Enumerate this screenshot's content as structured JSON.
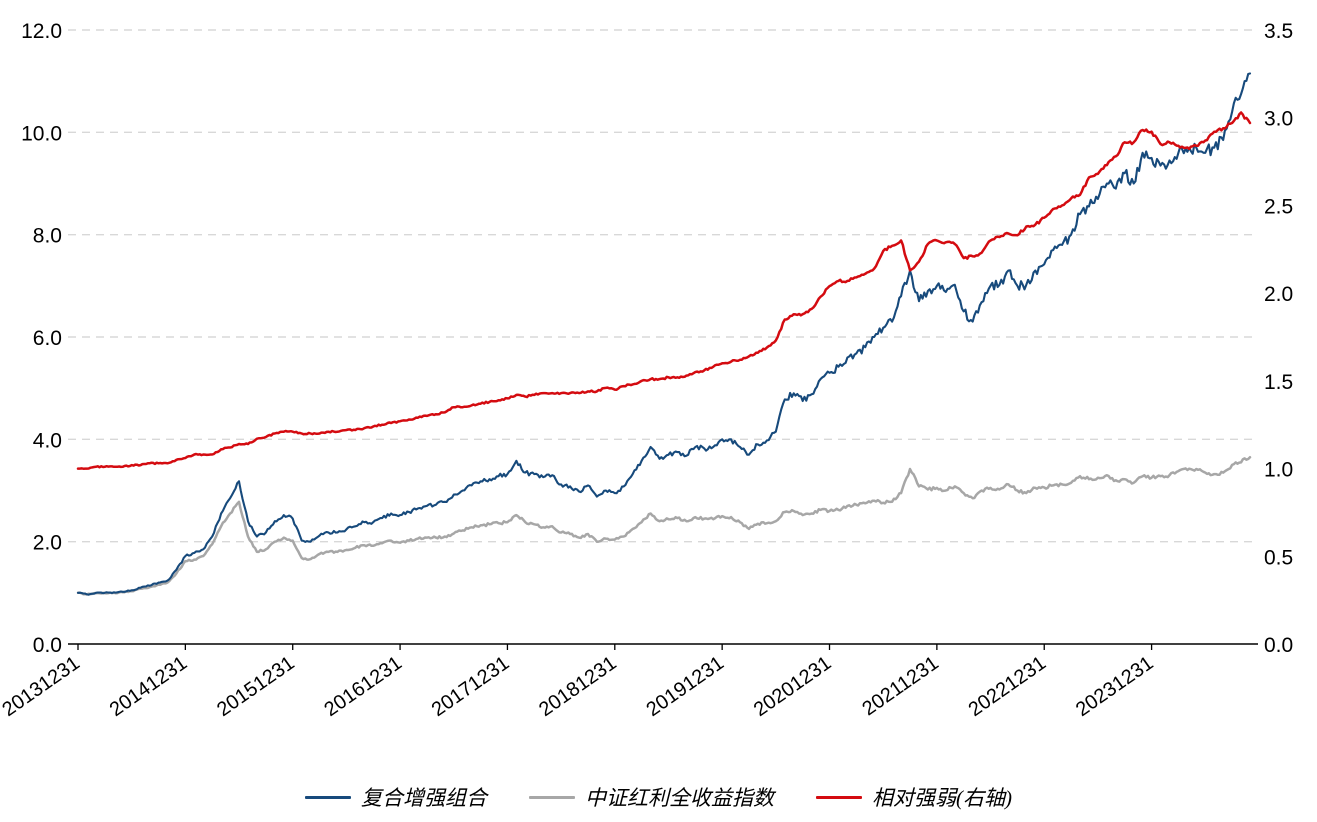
{
  "chart_data": {
    "type": "line",
    "title": "",
    "grid": {
      "show": true,
      "style": "dashed"
    },
    "legend_position": "bottom",
    "x_axis": {
      "start": "2013-12",
      "frequency": "monthly",
      "tick_labels": [
        "20131231",
        "20141231",
        "20151231",
        "20161231",
        "20171231",
        "20181231",
        "20191231",
        "20201231",
        "20211231",
        "20221231",
        "20231231"
      ]
    },
    "left_axis": {
      "range": [
        0,
        12
      ],
      "tick_step": 2,
      "tick_labels": [
        "0.0",
        "2.0",
        "4.0",
        "6.0",
        "8.0",
        "10.0",
        "12.0"
      ]
    },
    "right_axis": {
      "range": [
        0,
        3.5
      ],
      "tick_step": 0.5,
      "tick_labels": [
        "0.0",
        "0.5",
        "1.0",
        "1.5",
        "2.0",
        "2.5",
        "3.0",
        "3.5"
      ]
    },
    "series": [
      {
        "name": "复合增强组合",
        "axis": "left",
        "color": "#174a7c",
        "values": [
          1.0,
          0.97,
          1.0,
          1.0,
          1.01,
          1.02,
          1.05,
          1.1,
          1.14,
          1.2,
          1.24,
          1.45,
          1.72,
          1.78,
          1.85,
          2.1,
          2.55,
          2.85,
          3.18,
          2.4,
          2.1,
          2.18,
          2.4,
          2.52,
          2.45,
          2.02,
          2.0,
          2.12,
          2.18,
          2.18,
          2.24,
          2.3,
          2.38,
          2.38,
          2.46,
          2.55,
          2.52,
          2.58,
          2.65,
          2.7,
          2.72,
          2.78,
          2.92,
          3.0,
          3.1,
          3.18,
          3.22,
          3.28,
          3.32,
          3.58,
          3.35,
          3.32,
          3.26,
          3.3,
          3.12,
          3.08,
          2.98,
          3.1,
          2.88,
          3.0,
          2.95,
          3.08,
          3.32,
          3.58,
          3.85,
          3.62,
          3.7,
          3.75,
          3.68,
          3.85,
          3.82,
          3.85,
          4.0,
          4.0,
          3.85,
          3.7,
          3.9,
          3.98,
          4.15,
          4.78,
          4.9,
          4.75,
          4.88,
          5.18,
          5.3,
          5.42,
          5.6,
          5.68,
          5.8,
          6.0,
          6.18,
          6.3,
          6.8,
          7.3,
          6.7,
          6.9,
          7.0,
          6.88,
          7.02,
          6.5,
          6.3,
          6.68,
          7.0,
          7.02,
          7.3,
          7.0,
          7.02,
          7.3,
          7.42,
          7.7,
          7.8,
          8.0,
          8.4,
          8.55,
          8.7,
          9.0,
          8.9,
          9.2,
          9.0,
          9.6,
          9.5,
          9.35,
          9.45,
          9.6,
          9.62,
          9.7,
          9.6,
          9.7,
          9.85,
          10.4,
          10.75,
          11.15
        ]
      },
      {
        "name": "中证红利全收益指数",
        "axis": "left",
        "color": "#a7a7a7",
        "values": [
          1.0,
          0.97,
          0.99,
          0.99,
          1.0,
          1.01,
          1.03,
          1.08,
          1.11,
          1.16,
          1.2,
          1.38,
          1.62,
          1.65,
          1.72,
          1.95,
          2.3,
          2.55,
          2.78,
          2.1,
          1.8,
          1.85,
          2.0,
          2.08,
          2.02,
          1.68,
          1.66,
          1.76,
          1.8,
          1.8,
          1.84,
          1.88,
          1.93,
          1.92,
          1.97,
          2.02,
          1.98,
          2.02,
          2.06,
          2.08,
          2.08,
          2.1,
          2.16,
          2.22,
          2.28,
          2.32,
          2.34,
          2.36,
          2.38,
          2.52,
          2.38,
          2.34,
          2.28,
          2.3,
          2.18,
          2.15,
          2.08,
          2.15,
          2.0,
          2.06,
          2.04,
          2.1,
          2.25,
          2.38,
          2.55,
          2.4,
          2.44,
          2.46,
          2.4,
          2.48,
          2.45,
          2.44,
          2.5,
          2.48,
          2.38,
          2.25,
          2.35,
          2.36,
          2.4,
          2.58,
          2.6,
          2.52,
          2.55,
          2.62,
          2.6,
          2.62,
          2.7,
          2.72,
          2.75,
          2.8,
          2.76,
          2.78,
          2.95,
          3.42,
          3.08,
          3.02,
          3.05,
          3.0,
          3.08,
          2.95,
          2.85,
          3.0,
          3.05,
          3.02,
          3.12,
          3.0,
          2.95,
          3.05,
          3.06,
          3.1,
          3.12,
          3.15,
          3.28,
          3.22,
          3.25,
          3.3,
          3.2,
          3.22,
          3.15,
          3.28,
          3.25,
          3.28,
          3.3,
          3.38,
          3.4,
          3.42,
          3.35,
          3.32,
          3.35,
          3.5,
          3.55,
          3.65
        ]
      },
      {
        "name": "相对强弱(右轴)",
        "axis": "right",
        "color": "#d40b10",
        "values": [
          1.0,
          1.0,
          1.01,
          1.01,
          1.01,
          1.01,
          1.02,
          1.02,
          1.03,
          1.03,
          1.03,
          1.05,
          1.06,
          1.08,
          1.08,
          1.08,
          1.11,
          1.12,
          1.14,
          1.14,
          1.17,
          1.18,
          1.2,
          1.21,
          1.21,
          1.2,
          1.2,
          1.2,
          1.21,
          1.21,
          1.22,
          1.22,
          1.23,
          1.24,
          1.25,
          1.26,
          1.27,
          1.28,
          1.29,
          1.3,
          1.31,
          1.32,
          1.35,
          1.35,
          1.36,
          1.37,
          1.38,
          1.39,
          1.4,
          1.42,
          1.41,
          1.42,
          1.43,
          1.43,
          1.43,
          1.43,
          1.43,
          1.44,
          1.44,
          1.46,
          1.45,
          1.47,
          1.48,
          1.5,
          1.51,
          1.51,
          1.52,
          1.52,
          1.53,
          1.55,
          1.56,
          1.58,
          1.6,
          1.61,
          1.62,
          1.64,
          1.66,
          1.69,
          1.73,
          1.85,
          1.88,
          1.88,
          1.91,
          1.98,
          2.04,
          2.07,
          2.07,
          2.09,
          2.11,
          2.14,
          2.24,
          2.27,
          2.3,
          2.13,
          2.18,
          2.28,
          2.3,
          2.29,
          2.28,
          2.2,
          2.21,
          2.23,
          2.3,
          2.32,
          2.34,
          2.33,
          2.38,
          2.39,
          2.43,
          2.48,
          2.5,
          2.54,
          2.56,
          2.66,
          2.68,
          2.73,
          2.78,
          2.86,
          2.86,
          2.93,
          2.92,
          2.85,
          2.86,
          2.84,
          2.83,
          2.84,
          2.87,
          2.92,
          2.94,
          2.97,
          3.03,
          2.97
        ]
      }
    ],
    "style": {
      "grid_color": "#d8d8d8",
      "axis_color": "#000000",
      "background": "#ffffff"
    }
  }
}
